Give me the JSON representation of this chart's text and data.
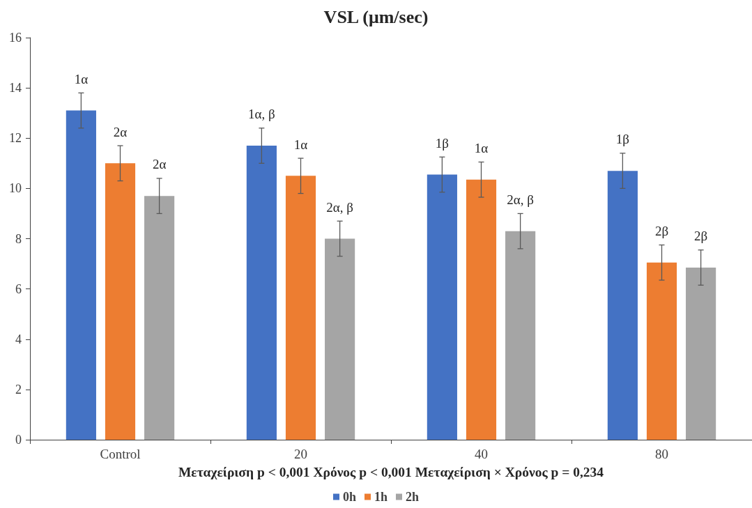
{
  "chart_data": {
    "type": "bar",
    "title": "VSL (μm/sec)",
    "xlabel": "Μεταχείριση p < 0,001 Χρόνος p < 0,001 Μεταχείριση × Χρόνος p = 0,234",
    "categories": [
      "Control",
      "20",
      "40",
      "80"
    ],
    "series": [
      {
        "name": "0h",
        "color": "#4472c4",
        "values": [
          13.1,
          11.7,
          10.55,
          10.7
        ],
        "errors": [
          0.7,
          0.7,
          0.7,
          0.7
        ]
      },
      {
        "name": "1h",
        "color": "#ed7d31",
        "values": [
          11.0,
          10.5,
          10.35,
          7.05
        ],
        "errors": [
          0.7,
          0.7,
          0.7,
          0.7
        ]
      },
      {
        "name": "2h",
        "color": "#a5a5a5",
        "values": [
          9.7,
          8.0,
          8.3,
          6.85
        ],
        "errors": [
          0.7,
          0.7,
          0.7,
          0.7
        ]
      }
    ],
    "annotations": [
      "1α",
      "2α",
      "2α",
      "1α, β",
      "1α",
      "2α, β",
      "1β",
      "1α",
      "2α, β",
      "1β",
      "2β",
      "2β"
    ],
    "ylim": [
      0,
      16
    ],
    "yticks": [
      0,
      2,
      4,
      6,
      8,
      10,
      12,
      14,
      16
    ],
    "legend": "bottom"
  }
}
